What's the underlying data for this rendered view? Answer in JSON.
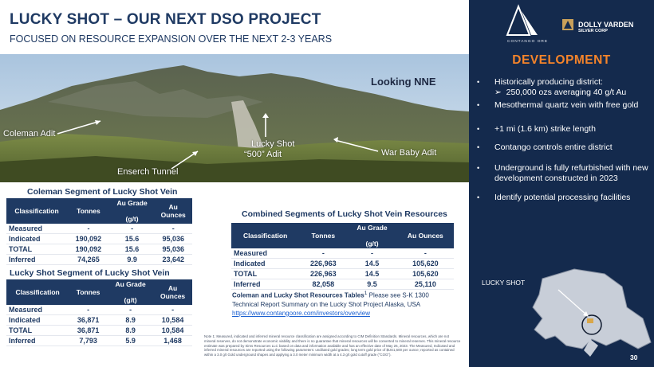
{
  "header": {
    "title": "LUCKY SHOT – OUR NEXT DSO PROJECT",
    "subtitle": "FOCUSED ON RESOURCE EXPANSION OVER THE NEXT 2-3 YEARS"
  },
  "photo": {
    "looking": "Looking NNE",
    "labels": {
      "coleman_adit": "Coleman Adit",
      "ensearch_tunnel": "Enserch Tunnel",
      "lucky_shot_500_line1": "Lucky Shot",
      "lucky_shot_500_line2": "“500” Adit",
      "war_baby_adit": "War Baby Adit"
    }
  },
  "coleman_table": {
    "title": "Coleman Segment of Lucky Shot Vein",
    "headers": [
      "Classification",
      "Tonnes",
      "Au Grade (g/t)",
      "Au Ounces"
    ],
    "header_grade_top": "Au Grade",
    "header_grade_bottom": "(g/t)",
    "header_oz_top": "Au",
    "header_oz_bottom": "Ounces",
    "rows": [
      [
        "Measured",
        "-",
        "-",
        "-"
      ],
      [
        "Indicated",
        "190,092",
        "15.6",
        "95,036"
      ],
      [
        "TOTAL",
        "190,092",
        "15.6",
        "95,036"
      ],
      [
        "Inferred",
        "74,265",
        "9.9",
        "23,642"
      ]
    ]
  },
  "luckyshot_table": {
    "title": "Lucky Shot Segment of Lucky Shot Vein",
    "headers": [
      "Classification",
      "Tonnes",
      "Au Grade (g/t)",
      "Au Ounces"
    ],
    "header_grade_top": "Au Grade",
    "header_grade_bottom": "(g/t)",
    "header_oz_top": "Au",
    "header_oz_bottom": "Ounces",
    "rows": [
      [
        "Measured",
        "-",
        "-",
        "-"
      ],
      [
        "Indicated",
        "36,871",
        "8.9",
        "10,584"
      ],
      [
        "TOTAL",
        "36,871",
        "8.9",
        "10,584"
      ],
      [
        "Inferred",
        "7,793",
        "5.9",
        "1,468"
      ]
    ]
  },
  "combined_table": {
    "title": "Combined Segments of Lucky Shot Vein Resources",
    "headers": [
      "Classification",
      "Tonnes",
      "Au Grade (g/t)",
      "Au Ounces"
    ],
    "header_grade_top": "Au Grade",
    "header_grade_bottom": "(g/t)",
    "header_oz": "Au Ounces",
    "rows": [
      [
        "Measured",
        "-",
        "-",
        "-"
      ],
      [
        "Indicated",
        "226,963",
        "14.5",
        "105,620"
      ],
      [
        "TOTAL",
        "226,963",
        "14.5",
        "105,620"
      ],
      [
        "Inferred",
        "82,058",
        "9.5",
        "25,110"
      ]
    ]
  },
  "resource_note": {
    "bold": "Coleman and Lucky Shot Resources Tables",
    "superscript": "1",
    "text1": "Please see S-K 1300 Technical Report Summary on the Lucky Shot Project Alaska, USA",
    "link": "https://www.contangoore.com/investors/overview"
  },
  "fineprint": "Note 1: Measured, indicated and inferred mineral resource classification are assigned according to CIM Definition Standards. Mineral resources, which are not mineral reserves, do not demonstrate economic viability and there is no guarantee that mineral resources will be converted to mineral reserves. This mineral resource estimate was prepared by Sims Resources LLC based on data and information available and has an effective date of May 26, 2023. The Measured, Indicated and inferred mineral resources are reported using the following parameters: undiluted gold grades; long term gold price of $US1,600 per ounce; reported as contained within a 3.0 g/t Gold underground shapes and applying a 3.0 meter minimum width at a 4.3 g/t gold cutoff grade (\"COG\").",
  "panel": {
    "logo_caption": "CONTANGO ORE",
    "partner_name": "DOLLY VARDEN",
    "partner_sub": "SILVER CORP",
    "heading": "DEVELOPMENT",
    "bullets": [
      "Historically producing district:",
      "Mesothermal quartz vein with free gold",
      "+1 mi (1.6 km) strike length",
      "Contango controls entire district",
      "Underground is fully refurbished with new development constructed in 2023",
      "Identify  potential processing facilities"
    ],
    "sub_bullet": "250,000 ozs averaging 40 g/t Au",
    "bullet_glyph": "•",
    "sub_glyph": "➢",
    "map_label": "LUCKY SHOT",
    "page_number": "30"
  },
  "colors": {
    "navy": "#1f3a63",
    "panel": "#142a4d",
    "accent": "#f5842a"
  }
}
